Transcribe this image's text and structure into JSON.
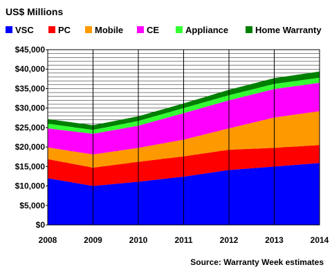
{
  "chart_data": {
    "type": "area",
    "stacked": true,
    "title": "US$ Millions",
    "source": "Source: Warranty Week estimates",
    "x": [
      "2008",
      "2009",
      "2010",
      "2011",
      "2012",
      "2013",
      "2014"
    ],
    "ylim": [
      0,
      45000
    ],
    "y_ticks": [
      "$0",
      "$5,000",
      "$10,000",
      "$15,000",
      "$20,000",
      "$25,000",
      "$30,000",
      "$35,000",
      "$40,000",
      "$45,000"
    ],
    "grid": "vertical lines at each year, horizontal lines every $1,000",
    "legend_position": "top",
    "series": [
      {
        "name": "VSC",
        "color": "#0000ff",
        "values": [
          12000,
          10000,
          11100,
          12400,
          14100,
          15000,
          15900
        ]
      },
      {
        "name": "PC",
        "color": "#ff0000",
        "values": [
          4900,
          4700,
          5100,
          5200,
          5200,
          4800,
          4600
        ]
      },
      {
        "name": "Mobile",
        "color": "#ff9900",
        "values": [
          3000,
          3400,
          3600,
          4300,
          5500,
          7800,
          8700
        ]
      },
      {
        "name": "CE",
        "color": "#ff00ff",
        "values": [
          4900,
          5300,
          5700,
          6800,
          7200,
          7300,
          7300
        ]
      },
      {
        "name": "Appliance",
        "color": "#33ff33",
        "values": [
          1200,
          1000,
          1200,
          1300,
          1300,
          1300,
          1300
        ]
      },
      {
        "name": "Home Warranty",
        "color": "#008000",
        "values": [
          1200,
          1200,
          1200,
          1200,
          1400,
          1500,
          1600
        ]
      }
    ]
  }
}
